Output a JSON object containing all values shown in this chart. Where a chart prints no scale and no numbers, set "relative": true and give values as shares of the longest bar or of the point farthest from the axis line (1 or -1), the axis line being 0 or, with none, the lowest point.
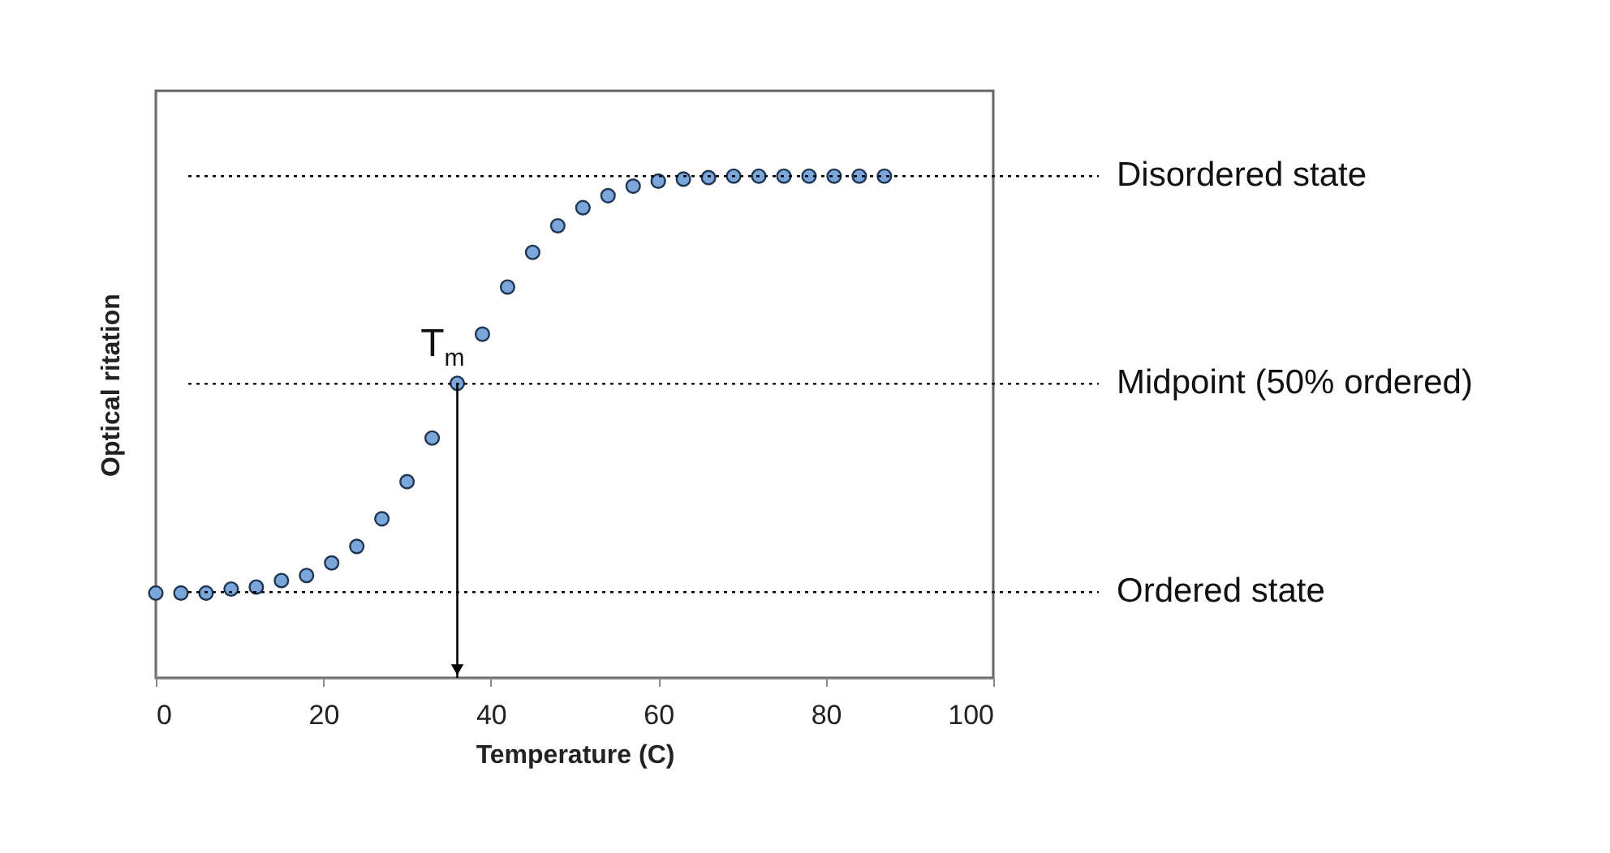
{
  "chart_data": {
    "type": "scatter",
    "relative": true,
    "xlabel": "Temperature (C)",
    "ylabel": "Optical ritation",
    "x": [
      0,
      3,
      6,
      9,
      12,
      15,
      18,
      21,
      24,
      27,
      30,
      33,
      36,
      39,
      42,
      45,
      48,
      51,
      54,
      57,
      60,
      63,
      66,
      69,
      72,
      75,
      78,
      81,
      84,
      87
    ],
    "series": [
      {
        "color": "#7aa6dc",
        "values": [
          0.169,
          0.169,
          0.169,
          0.177,
          0.181,
          0.194,
          0.204,
          0.229,
          0.262,
          0.317,
          0.391,
          0.478,
          0.587,
          0.685,
          0.779,
          0.848,
          0.901,
          0.937,
          0.961,
          0.98,
          0.99,
          0.994,
          0.997,
          1,
          1,
          1,
          1,
          1,
          1,
          1
        ]
      }
    ],
    "xlim": [
      0,
      100
    ],
    "xticks": [
      0,
      20,
      40,
      60,
      80,
      100
    ],
    "marker": "circle",
    "grid": false,
    "ref_lines": [
      {
        "axis": "y",
        "value": 1,
        "label": "Disordered state",
        "line_style": "dotted"
      },
      {
        "axis": "y",
        "value": 0.586,
        "label": "Midpoint (50% ordered)",
        "line_style": "dotted"
      },
      {
        "axis": "y",
        "value": 0.171,
        "label": "Ordered state",
        "line_style": "dotted"
      }
    ],
    "annotations": [
      {
        "text": "T$_{m}$",
        "x": 36,
        "y": 0.587
      }
    ]
  }
}
